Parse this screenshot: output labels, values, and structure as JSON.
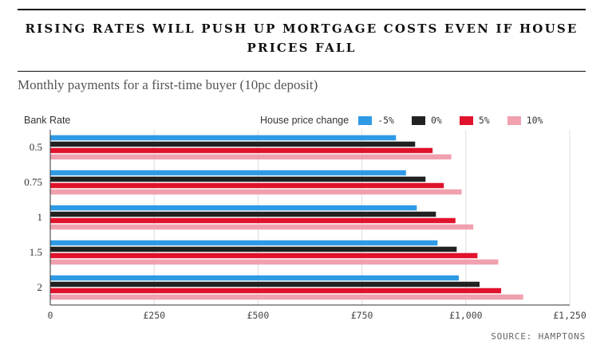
{
  "header": {
    "title": "RISING RATES WILL PUSH UP MORTGAGE COSTS EVEN IF HOUSE PRICES FALL",
    "subtitle": "Monthly payments for a first-time buyer (10pc deposit)"
  },
  "source": "SOURCE: HAMPTONS",
  "colors": {
    "minus5": "#2e9ae6",
    "zero": "#222222",
    "plus5": "#e0122c",
    "plus10": "#f0a0ae",
    "grid": "#dddddd",
    "axis": "#333333"
  },
  "chart_data": {
    "type": "bar",
    "orientation": "horizontal",
    "ylabel": "Bank Rate",
    "legend_title": "House price change",
    "legend_placement": "top-right",
    "categories": [
      "0.5",
      "0.75",
      "1",
      "1.5",
      "2"
    ],
    "xlim": [
      0,
      1250
    ],
    "xticks": [
      0,
      250,
      500,
      750,
      1000,
      1250
    ],
    "xtick_labels": [
      "0",
      "£250",
      "£500",
      "£750",
      "£1,000",
      "£1,250"
    ],
    "grid": true,
    "series": [
      {
        "name": "-5%",
        "color": "#2e9ae6",
        "values": [
          832,
          856,
          882,
          932,
          983
        ]
      },
      {
        "name": "0%",
        "color": "#222222",
        "values": [
          878,
          903,
          928,
          978,
          1033
        ]
      },
      {
        "name": "5%",
        "color": "#e0122c",
        "values": [
          920,
          947,
          975,
          1028,
          1085
        ]
      },
      {
        "name": "10%",
        "color": "#f0a0ae",
        "values": [
          965,
          990,
          1018,
          1078,
          1138
        ]
      }
    ]
  }
}
